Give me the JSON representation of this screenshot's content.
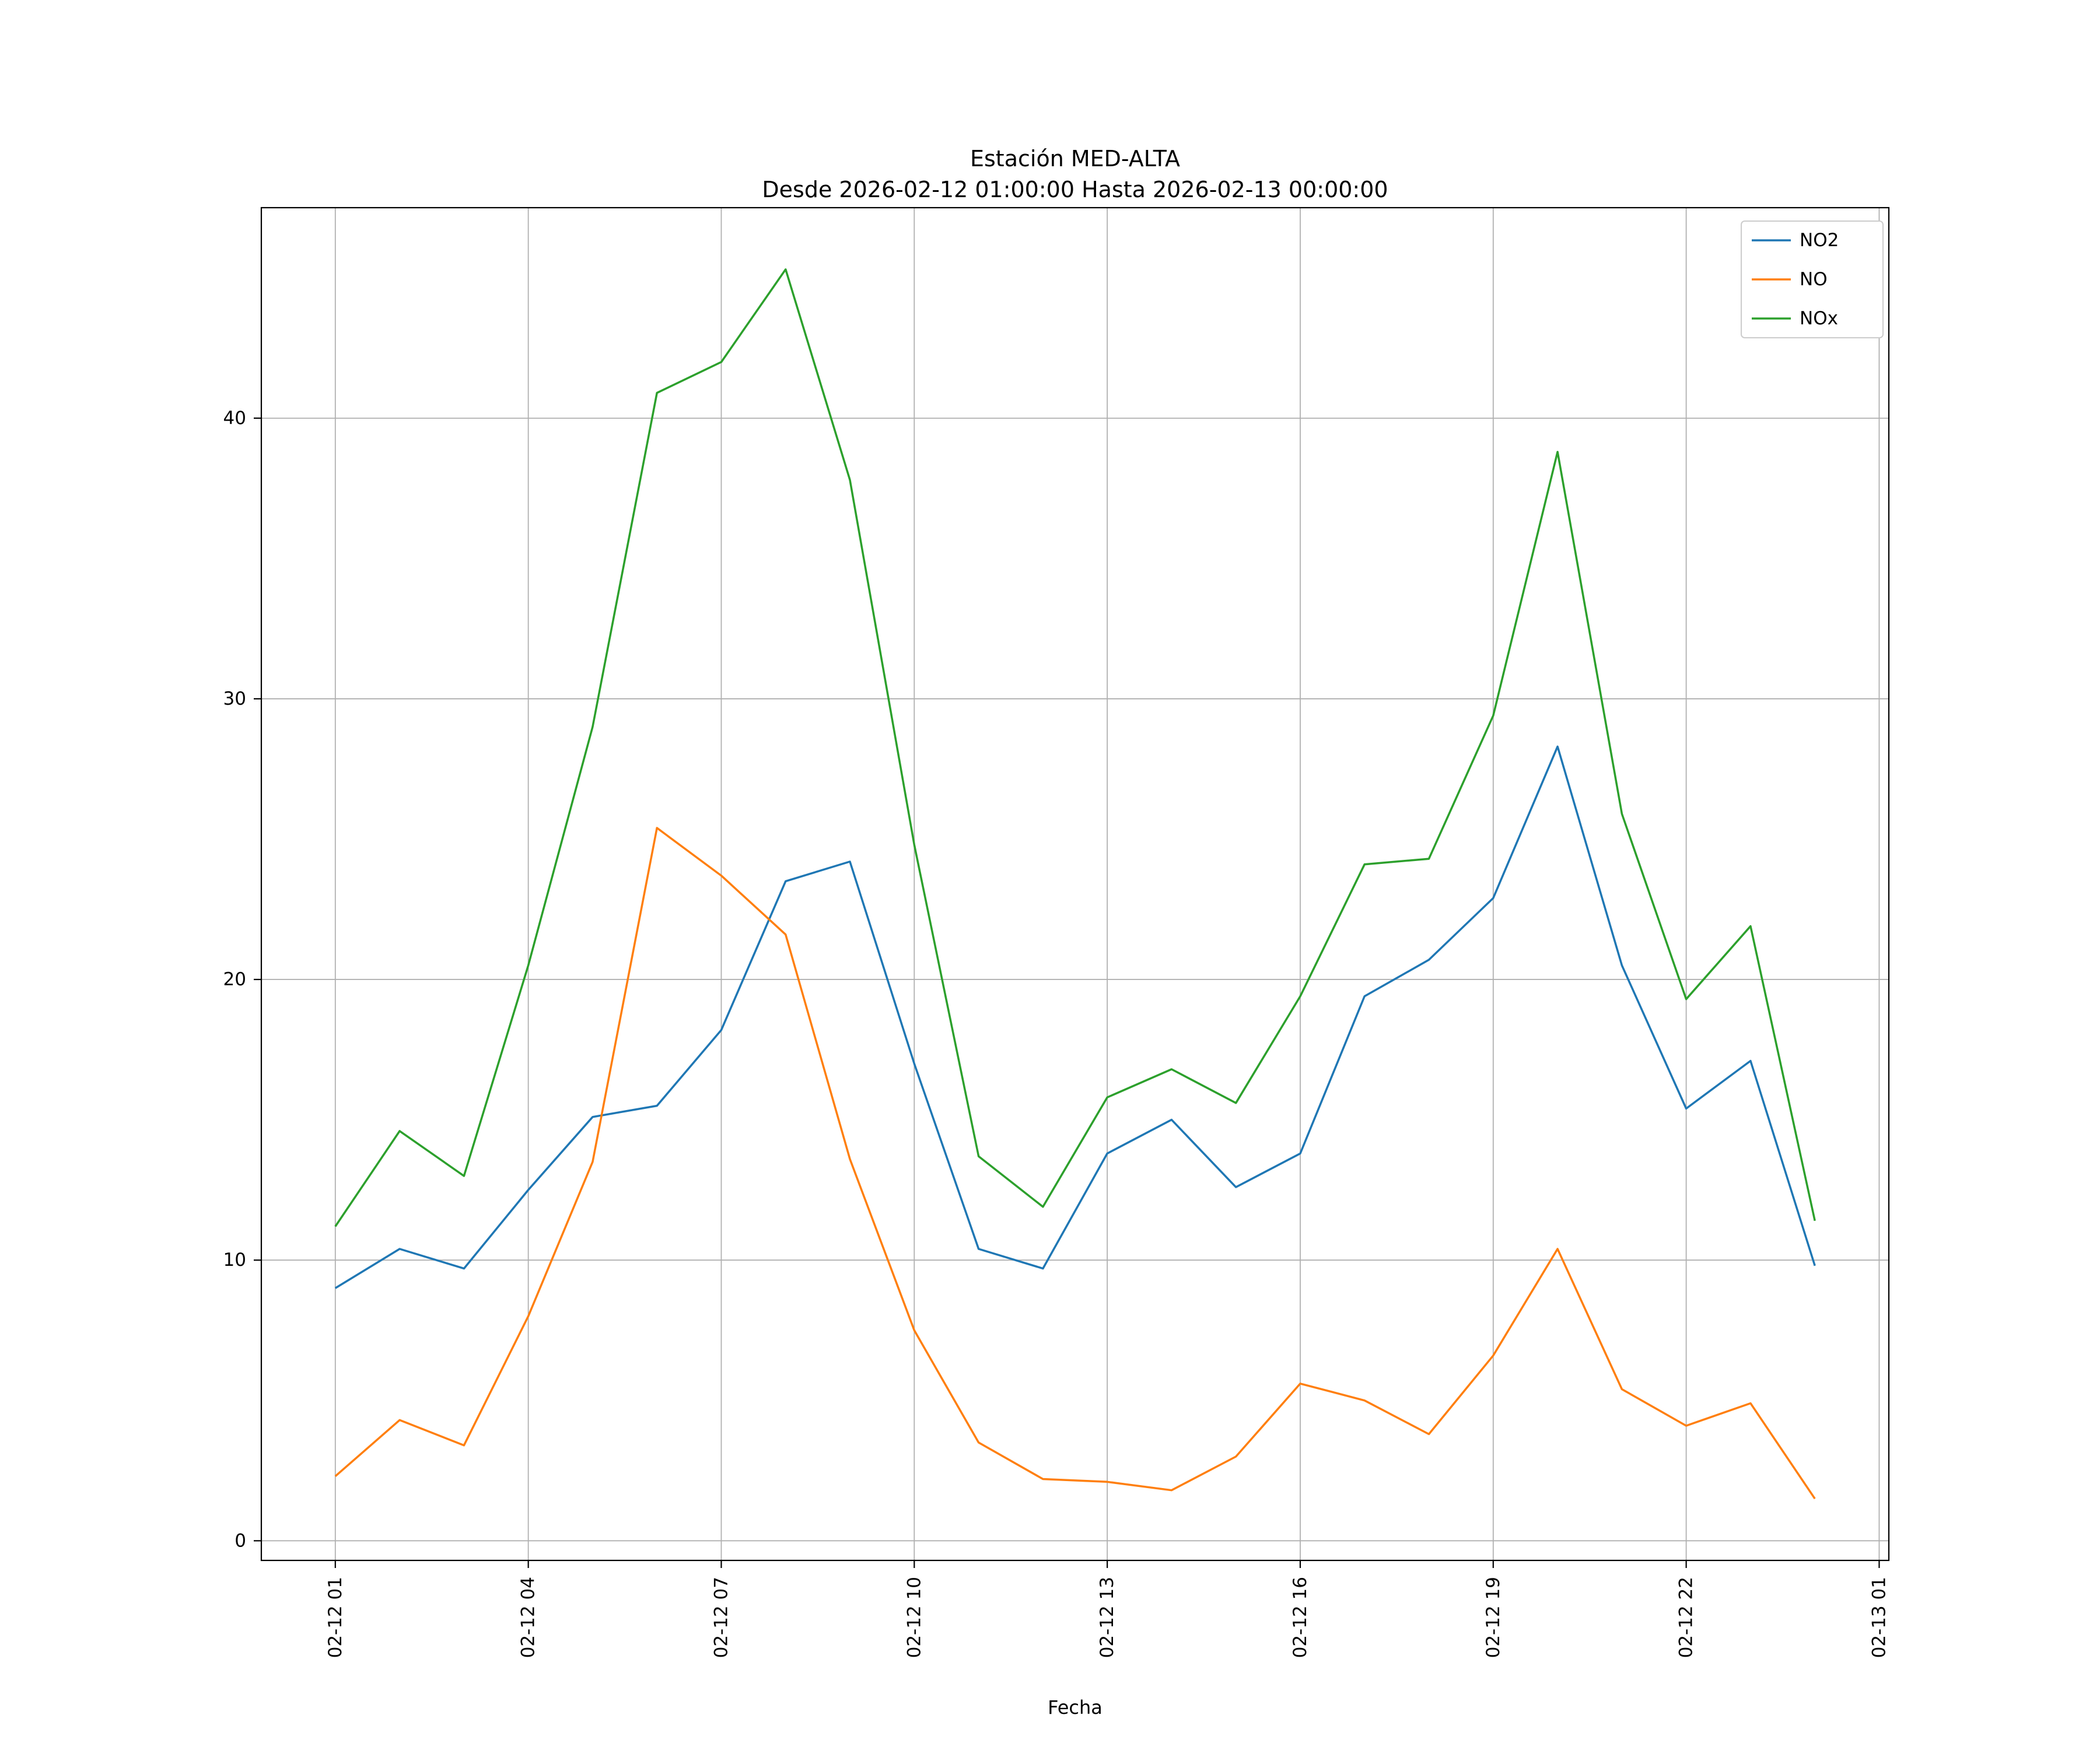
{
  "figure": {
    "title_line1": "Estación MED-ALTA",
    "title_line2": "Desde 2026-02-12 01:00:00 Hasta 2026-02-13 00:00:00",
    "xlabel": "Fecha"
  },
  "colors": {
    "background": "#ffffff",
    "grid": "#b0b0b0",
    "axis": "#000000",
    "no2": "#1f77b4",
    "no": "#ff7f0e",
    "nox": "#2ca02c"
  },
  "chart_data": {
    "type": "line",
    "title": "Estación MED-ALTA\nDesde 2026-02-12 01:00:00 Hasta 2026-02-13 00:00:00",
    "xlabel": "Fecha",
    "ylabel": "",
    "grid": true,
    "legend_position": "upper right",
    "x_hours": [
      1,
      2,
      3,
      4,
      5,
      6,
      7,
      8,
      9,
      10,
      11,
      12,
      13,
      14,
      15,
      16,
      17,
      18,
      19,
      20,
      21,
      22,
      23,
      24
    ],
    "series": [
      {
        "name": "NO2",
        "color": "#1f77b4",
        "values": [
          9.0,
          10.4,
          9.7,
          12.5,
          15.1,
          15.5,
          18.2,
          23.5,
          24.2,
          17.0,
          10.4,
          9.7,
          13.8,
          15.0,
          12.6,
          13.8,
          19.4,
          20.7,
          22.9,
          28.3,
          20.5,
          15.4,
          17.1,
          9.8
        ]
      },
      {
        "name": "NO",
        "color": "#ff7f0e",
        "values": [
          2.3,
          4.3,
          3.4,
          8.0,
          13.5,
          25.4,
          23.7,
          21.6,
          13.6,
          7.5,
          3.5,
          2.2,
          2.1,
          1.8,
          3.0,
          5.6,
          5.0,
          3.8,
          6.6,
          10.4,
          5.4,
          4.1,
          4.9,
          1.5
        ]
      },
      {
        "name": "NOx",
        "color": "#2ca02c",
        "values": [
          11.2,
          14.6,
          13.0,
          20.5,
          29.0,
          40.9,
          42.0,
          45.3,
          37.8,
          24.8,
          13.7,
          11.9,
          15.8,
          16.8,
          15.6,
          19.4,
          24.1,
          24.3,
          29.4,
          38.8,
          25.9,
          19.3,
          21.9,
          11.4
        ]
      }
    ],
    "xticks": {
      "positions": [
        1,
        4,
        7,
        10,
        13,
        16,
        19,
        22,
        25
      ],
      "labels": [
        "02-12 01",
        "02-12 04",
        "02-12 07",
        "02-12 10",
        "02-12 13",
        "02-12 16",
        "02-12 19",
        "02-12 22",
        "02-13 01"
      ]
    },
    "yticks": [
      0,
      10,
      20,
      30,
      40
    ],
    "xlim": [
      -0.15,
      25.15
    ],
    "ylim": [
      -0.7,
      47.5
    ]
  }
}
